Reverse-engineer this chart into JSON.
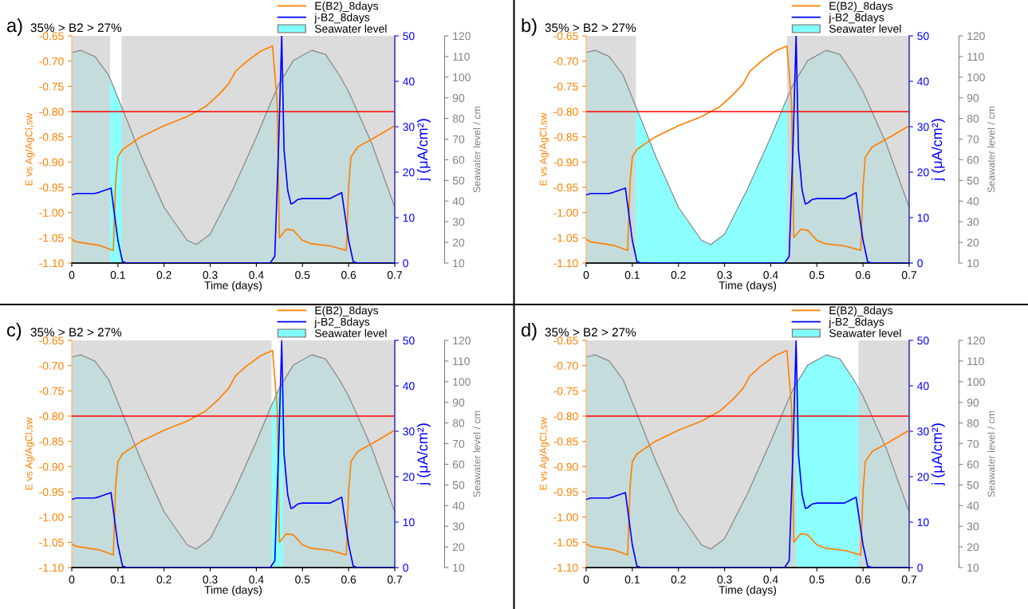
{
  "chart_data": [
    {
      "type": "line",
      "annotations": [
        "a)",
        "35% > B2 > 27%"
      ],
      "xlabel": "Time (days)",
      "ylabel": "E vs Ag/AgCl,sw",
      "y2label": "j (μA/cm²)",
      "y3label": "Seawater level / cm",
      "xlim": [
        0,
        0.7
      ],
      "xticks": [
        0,
        0.1,
        0.2,
        0.3,
        0.4,
        0.5,
        0.6,
        0.7
      ],
      "ylim": [
        -1.1,
        -0.65
      ],
      "yticks": [
        {
          "value": -1.1,
          "label": "-1.10"
        },
        {
          "value": -1.05,
          "label": "-1.05"
        },
        {
          "value": -1.0,
          "label": "-1.00"
        },
        {
          "value": -0.95,
          "label": "-0.95"
        },
        {
          "value": -0.9,
          "label": "-0.90"
        },
        {
          "value": -0.85,
          "label": "-0.85"
        },
        {
          "value": -0.8,
          "label": "-0.80"
        },
        {
          "value": -0.75,
          "label": "-0.75"
        },
        {
          "value": -0.7,
          "label": "-0.70"
        },
        {
          "value": -0.65,
          "label": "-0.65"
        }
      ],
      "y2lim": [
        0,
        50
      ],
      "y2ticks": [
        0,
        10,
        20,
        30,
        40,
        50
      ],
      "y3lim": [
        10,
        120
      ],
      "y3ticks": [
        10,
        20,
        30,
        40,
        50,
        60,
        70,
        80,
        90,
        100,
        110,
        120
      ],
      "legend": "top right",
      "series": [
        {
          "name": "E(B2)_8days",
          "color": "#ff8000",
          "x": [
            0,
            0.01,
            0.06,
            0.09,
            0.095,
            0.1,
            0.11,
            0.15,
            0.2,
            0.25,
            0.27,
            0.29,
            0.32,
            0.34,
            0.355,
            0.38,
            0.41,
            0.435,
            0.445,
            0.45,
            0.465,
            0.48,
            0.5,
            0.52,
            0.56,
            0.595,
            0.6,
            0.605,
            0.62,
            0.65,
            0.7
          ],
          "values": [
            -1.053,
            -1.058,
            -1.065,
            -1.075,
            -0.94,
            -0.89,
            -0.875,
            -0.85,
            -0.828,
            -0.81,
            -0.8,
            -0.79,
            -0.765,
            -0.745,
            -0.72,
            -0.7,
            -0.68,
            -0.67,
            -0.78,
            -1.05,
            -1.033,
            -1.035,
            -1.055,
            -1.062,
            -1.066,
            -1.075,
            -0.95,
            -0.89,
            -0.87,
            -0.855,
            -0.828
          ]
        },
        {
          "name": "j-B2_8days",
          "axis": "y2",
          "color": "#0000ff",
          "x": [
            0,
            0.01,
            0.05,
            0.06,
            0.085,
            0.1,
            0.11,
            0.12,
            0.43,
            0.44,
            0.448,
            0.455,
            0.46,
            0.468,
            0.475,
            0.48,
            0.49,
            0.5,
            0.56,
            0.585,
            0.6,
            0.61,
            0.62,
            0.7
          ],
          "values": [
            15,
            15.3,
            15.3,
            15.6,
            16.5,
            5,
            0.3,
            0,
            0,
            1.5,
            25,
            50,
            25,
            16,
            13,
            13.2,
            14,
            14.2,
            14.2,
            15.5,
            5,
            0.3,
            0,
            0
          ]
        },
        {
          "name": "Seawater level",
          "type": "area",
          "axis": "y3",
          "color": "#80ffff",
          "x": [
            0,
            0.02,
            0.05,
            0.08,
            0.1,
            0.12,
            0.15,
            0.2,
            0.25,
            0.27,
            0.3,
            0.35,
            0.4,
            0.43,
            0.45,
            0.48,
            0.52,
            0.55,
            0.58,
            0.6,
            0.65,
            0.7
          ],
          "values": [
            112,
            113,
            110,
            101,
            90,
            79,
            62,
            37,
            21,
            19,
            24,
            46,
            71,
            87,
            97,
            108,
            113,
            111,
            101,
            93,
            68,
            37
          ]
        }
      ],
      "ref_lines": [
        {
          "axis": "y",
          "value": -0.8,
          "color": "#ff0000"
        }
      ],
      "bands": [
        {
          "axis": "x",
          "from": 0,
          "to": 0.083,
          "color": "#d3d3d3"
        },
        {
          "axis": "x",
          "from": 0.108,
          "to": 0.7,
          "color": "#d3d3d3"
        }
      ]
    },
    {
      "type": "line",
      "annotations": [
        "b)",
        "35% > B2 > 27%"
      ],
      "xlabel": "Time (days)",
      "ylabel": "E vs Ag/AgCl,sw",
      "y2label": "j (μA/cm²)",
      "y3label": "Seawater level / cm",
      "xlim": [
        0,
        0.7
      ],
      "xticks": [
        0,
        0.1,
        0.2,
        0.3,
        0.4,
        0.5,
        0.6,
        0.7
      ],
      "ylim": [
        -1.1,
        -0.65
      ],
      "yticks": [
        {
          "value": -1.1,
          "label": "-1.10"
        },
        {
          "value": -1.05,
          "label": "-1.05"
        },
        {
          "value": -1.0,
          "label": "-1.00"
        },
        {
          "value": -0.95,
          "label": "-0.95"
        },
        {
          "value": -0.9,
          "label": "-0.90"
        },
        {
          "value": -0.85,
          "label": "-0.85"
        },
        {
          "value": -0.8,
          "label": "-0.80"
        },
        {
          "value": -0.75,
          "label": "-0.75"
        },
        {
          "value": -0.7,
          "label": "-0.70"
        },
        {
          "value": -0.65,
          "label": "-0.65"
        }
      ],
      "y2lim": [
        0,
        50
      ],
      "y2ticks": [
        0,
        10,
        20,
        30,
        40,
        50
      ],
      "y3lim": [
        10,
        120
      ],
      "y3ticks": [
        10,
        20,
        30,
        40,
        50,
        60,
        70,
        80,
        90,
        100,
        110,
        120
      ],
      "legend": "top right",
      "series": [
        {
          "name": "E(B2)_8days",
          "color": "#ff8000",
          "x": [
            0,
            0.01,
            0.06,
            0.09,
            0.095,
            0.1,
            0.11,
            0.15,
            0.2,
            0.25,
            0.27,
            0.29,
            0.32,
            0.34,
            0.355,
            0.38,
            0.41,
            0.435,
            0.445,
            0.45,
            0.465,
            0.48,
            0.5,
            0.52,
            0.56,
            0.595,
            0.6,
            0.605,
            0.62,
            0.65,
            0.7
          ],
          "values": [
            -1.053,
            -1.058,
            -1.065,
            -1.075,
            -0.94,
            -0.89,
            -0.875,
            -0.85,
            -0.828,
            -0.81,
            -0.8,
            -0.79,
            -0.765,
            -0.745,
            -0.72,
            -0.7,
            -0.68,
            -0.67,
            -0.78,
            -1.05,
            -1.033,
            -1.035,
            -1.055,
            -1.062,
            -1.066,
            -1.075,
            -0.95,
            -0.89,
            -0.87,
            -0.855,
            -0.828
          ]
        },
        {
          "name": "j-B2_8days",
          "axis": "y2",
          "color": "#0000ff",
          "x": [
            0,
            0.01,
            0.05,
            0.06,
            0.085,
            0.1,
            0.11,
            0.12,
            0.43,
            0.44,
            0.448,
            0.455,
            0.46,
            0.468,
            0.475,
            0.48,
            0.49,
            0.5,
            0.56,
            0.585,
            0.6,
            0.61,
            0.62,
            0.7
          ],
          "values": [
            15,
            15.3,
            15.3,
            15.6,
            16.5,
            5,
            0.3,
            0,
            0,
            1.5,
            25,
            50,
            25,
            16,
            13,
            13.2,
            14,
            14.2,
            14.2,
            15.5,
            5,
            0.3,
            0,
            0
          ]
        },
        {
          "name": "Seawater level",
          "type": "area",
          "axis": "y3",
          "color": "#80ffff",
          "x": [
            0,
            0.02,
            0.05,
            0.08,
            0.1,
            0.12,
            0.15,
            0.2,
            0.25,
            0.27,
            0.3,
            0.35,
            0.4,
            0.43,
            0.45,
            0.48,
            0.52,
            0.55,
            0.58,
            0.6,
            0.65,
            0.7
          ],
          "values": [
            112,
            113,
            110,
            101,
            90,
            79,
            62,
            37,
            21,
            19,
            24,
            46,
            71,
            87,
            97,
            108,
            113,
            111,
            101,
            93,
            68,
            37
          ]
        }
      ],
      "ref_lines": [
        {
          "axis": "y",
          "value": -0.8,
          "color": "#ff0000"
        }
      ],
      "bands": [
        {
          "axis": "x",
          "from": 0,
          "to": 0.108,
          "color": "#d3d3d3"
        },
        {
          "axis": "x",
          "from": 0.435,
          "to": 0.7,
          "color": "#d3d3d3"
        }
      ]
    },
    {
      "type": "line",
      "annotations": [
        "c)",
        "35% > B2 > 27%"
      ],
      "xlabel": "Time (days)",
      "ylabel": "E vs Ag/AgCl,sw",
      "y2label": "j (μA/cm²)",
      "y3label": "Seawater level / cm",
      "xlim": [
        0,
        0.7
      ],
      "xticks": [
        0,
        0.1,
        0.2,
        0.3,
        0.4,
        0.5,
        0.6,
        0.7
      ],
      "ylim": [
        -1.1,
        -0.65
      ],
      "yticks": [
        {
          "value": -1.1,
          "label": "-1.10"
        },
        {
          "value": -1.05,
          "label": "-1.05"
        },
        {
          "value": -1.0,
          "label": "-1.00"
        },
        {
          "value": -0.95,
          "label": "-0.95"
        },
        {
          "value": -0.9,
          "label": "-0.90"
        },
        {
          "value": -0.85,
          "label": "-0.85"
        },
        {
          "value": -0.8,
          "label": "-0.80"
        },
        {
          "value": -0.75,
          "label": "-0.75"
        },
        {
          "value": -0.7,
          "label": "-0.70"
        },
        {
          "value": -0.65,
          "label": "-0.65"
        }
      ],
      "y2lim": [
        0,
        50
      ],
      "y2ticks": [
        0,
        10,
        20,
        30,
        40,
        50
      ],
      "y3lim": [
        10,
        120
      ],
      "y3ticks": [
        10,
        20,
        30,
        40,
        50,
        60,
        70,
        80,
        90,
        100,
        110,
        120
      ],
      "legend": "top right",
      "series": [
        {
          "name": "E(B2)_8days",
          "color": "#ff8000",
          "x": [
            0,
            0.01,
            0.06,
            0.09,
            0.095,
            0.1,
            0.11,
            0.15,
            0.2,
            0.25,
            0.27,
            0.29,
            0.32,
            0.34,
            0.355,
            0.38,
            0.41,
            0.435,
            0.445,
            0.45,
            0.465,
            0.48,
            0.5,
            0.52,
            0.56,
            0.595,
            0.6,
            0.605,
            0.62,
            0.65,
            0.7
          ],
          "values": [
            -1.053,
            -1.058,
            -1.065,
            -1.075,
            -0.94,
            -0.89,
            -0.875,
            -0.85,
            -0.828,
            -0.81,
            -0.8,
            -0.79,
            -0.765,
            -0.745,
            -0.72,
            -0.7,
            -0.68,
            -0.67,
            -0.78,
            -1.05,
            -1.033,
            -1.035,
            -1.055,
            -1.062,
            -1.066,
            -1.075,
            -0.95,
            -0.89,
            -0.87,
            -0.855,
            -0.828
          ]
        },
        {
          "name": "j-B2_8days",
          "axis": "y2",
          "color": "#0000ff",
          "x": [
            0,
            0.01,
            0.05,
            0.06,
            0.085,
            0.1,
            0.11,
            0.12,
            0.43,
            0.44,
            0.448,
            0.455,
            0.46,
            0.468,
            0.475,
            0.48,
            0.49,
            0.5,
            0.56,
            0.585,
            0.6,
            0.61,
            0.62,
            0.7
          ],
          "values": [
            15,
            15.3,
            15.3,
            15.6,
            16.5,
            5,
            0.3,
            0,
            0,
            1.5,
            25,
            50,
            25,
            16,
            13,
            13.2,
            14,
            14.2,
            14.2,
            15.5,
            5,
            0.3,
            0,
            0
          ]
        },
        {
          "name": "Seawater level",
          "type": "area",
          "axis": "y3",
          "color": "#80ffff",
          "x": [
            0,
            0.02,
            0.05,
            0.08,
            0.1,
            0.12,
            0.15,
            0.2,
            0.25,
            0.27,
            0.3,
            0.35,
            0.4,
            0.43,
            0.45,
            0.48,
            0.52,
            0.55,
            0.58,
            0.6,
            0.65,
            0.7
          ],
          "values": [
            112,
            113,
            110,
            101,
            90,
            79,
            62,
            37,
            21,
            19,
            24,
            46,
            71,
            87,
            97,
            108,
            113,
            111,
            101,
            93,
            68,
            37
          ]
        }
      ],
      "ref_lines": [
        {
          "axis": "y",
          "value": -0.8,
          "color": "#ff0000"
        }
      ],
      "bands": [
        {
          "axis": "x",
          "from": 0,
          "to": 0.433,
          "color": "#d3d3d3"
        },
        {
          "axis": "x",
          "from": 0.458,
          "to": 0.7,
          "color": "#d3d3d3"
        }
      ]
    },
    {
      "type": "line",
      "annotations": [
        "d)",
        "35% > B2 > 27%"
      ],
      "xlabel": "Time (days)",
      "ylabel": "E vs Ag/AgCl,sw",
      "y2label": "j (μA/cm²)",
      "y3label": "Seawater level / cm",
      "xlim": [
        0,
        0.7
      ],
      "xticks": [
        0,
        0.1,
        0.2,
        0.3,
        0.4,
        0.5,
        0.6,
        0.7
      ],
      "ylim": [
        -1.1,
        -0.65
      ],
      "yticks": [
        {
          "value": -1.1,
          "label": "-1.10"
        },
        {
          "value": -1.05,
          "label": "-1.05"
        },
        {
          "value": -1.0,
          "label": "-1.00"
        },
        {
          "value": -0.95,
          "label": "-0.95"
        },
        {
          "value": -0.9,
          "label": "-0.90"
        },
        {
          "value": -0.85,
          "label": "-0.85"
        },
        {
          "value": -0.8,
          "label": "-0.80"
        },
        {
          "value": -0.75,
          "label": "-0.75"
        },
        {
          "value": -0.7,
          "label": "-0.70"
        },
        {
          "value": -0.65,
          "label": "-0.65"
        }
      ],
      "y2lim": [
        0,
        50
      ],
      "y2ticks": [
        0,
        10,
        20,
        30,
        40,
        50
      ],
      "y3lim": [
        10,
        120
      ],
      "y3ticks": [
        10,
        20,
        30,
        40,
        50,
        60,
        70,
        80,
        90,
        100,
        110,
        120
      ],
      "legend": "top right",
      "series": [
        {
          "name": "E(B2)_8days",
          "color": "#ff8000",
          "x": [
            0,
            0.01,
            0.06,
            0.09,
            0.095,
            0.1,
            0.11,
            0.15,
            0.2,
            0.25,
            0.27,
            0.29,
            0.32,
            0.34,
            0.355,
            0.38,
            0.41,
            0.435,
            0.445,
            0.45,
            0.465,
            0.48,
            0.5,
            0.52,
            0.56,
            0.595,
            0.6,
            0.605,
            0.62,
            0.65,
            0.7
          ],
          "values": [
            -1.053,
            -1.058,
            -1.065,
            -1.075,
            -0.94,
            -0.89,
            -0.875,
            -0.85,
            -0.828,
            -0.81,
            -0.8,
            -0.79,
            -0.765,
            -0.745,
            -0.72,
            -0.7,
            -0.68,
            -0.67,
            -0.78,
            -1.05,
            -1.033,
            -1.035,
            -1.055,
            -1.062,
            -1.066,
            -1.075,
            -0.95,
            -0.89,
            -0.87,
            -0.855,
            -0.828
          ]
        },
        {
          "name": "j-B2_8days",
          "axis": "y2",
          "color": "#0000ff",
          "x": [
            0,
            0.01,
            0.05,
            0.06,
            0.085,
            0.1,
            0.11,
            0.12,
            0.43,
            0.44,
            0.448,
            0.455,
            0.46,
            0.468,
            0.475,
            0.48,
            0.49,
            0.5,
            0.56,
            0.585,
            0.6,
            0.61,
            0.62,
            0.7
          ],
          "values": [
            15,
            15.3,
            15.3,
            15.6,
            16.5,
            5,
            0.3,
            0,
            0,
            1.5,
            25,
            50,
            25,
            16,
            13,
            13.2,
            14,
            14.2,
            14.2,
            15.5,
            5,
            0.3,
            0,
            0
          ]
        },
        {
          "name": "Seawater level",
          "type": "area",
          "axis": "y3",
          "color": "#80ffff",
          "x": [
            0,
            0.02,
            0.05,
            0.08,
            0.1,
            0.12,
            0.15,
            0.2,
            0.25,
            0.27,
            0.3,
            0.35,
            0.4,
            0.43,
            0.45,
            0.48,
            0.52,
            0.55,
            0.58,
            0.6,
            0.65,
            0.7
          ],
          "values": [
            112,
            113,
            110,
            101,
            90,
            79,
            62,
            37,
            21,
            19,
            24,
            46,
            71,
            87,
            97,
            108,
            113,
            111,
            101,
            93,
            68,
            37
          ]
        }
      ],
      "ref_lines": [
        {
          "axis": "y",
          "value": -0.8,
          "color": "#ff0000"
        }
      ],
      "bands": [
        {
          "axis": "x",
          "from": 0,
          "to": 0.455,
          "color": "#d3d3d3"
        },
        {
          "axis": "x",
          "from": 0.59,
          "to": 0.7,
          "color": "#d3d3d3"
        }
      ]
    }
  ]
}
